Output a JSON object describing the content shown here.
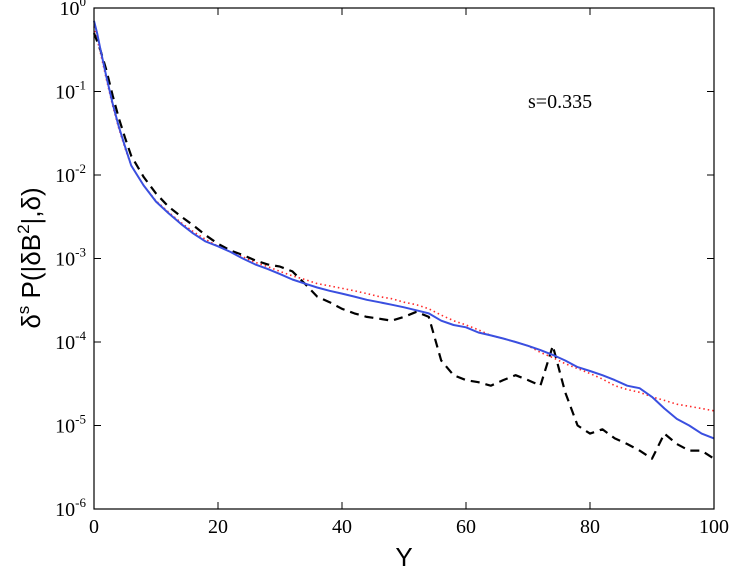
{
  "chart_data": {
    "type": "line",
    "xlabel": "Y",
    "ylabel": {
      "base": "δ",
      "sup": "s",
      "mid": " P(|δB",
      "sup2": "2",
      "end": "|,δ)"
    },
    "annotation": "s=0.335",
    "xlim": [
      0,
      100
    ],
    "ylim": [
      1e-06,
      1
    ],
    "yscale": "log",
    "grid": false,
    "xticks": [
      {
        "value": 0,
        "label": "0"
      },
      {
        "value": 20,
        "label": "20"
      },
      {
        "value": 40,
        "label": "40"
      },
      {
        "value": 60,
        "label": "60"
      },
      {
        "value": 80,
        "label": "80"
      },
      {
        "value": 100,
        "label": "100"
      }
    ],
    "yticks": [
      {
        "value": 1e-06,
        "base": "10",
        "exp": "-6"
      },
      {
        "value": 1e-05,
        "base": "10",
        "exp": "-5"
      },
      {
        "value": 0.0001,
        "base": "10",
        "exp": "-4"
      },
      {
        "value": 0.001,
        "base": "10",
        "exp": "-3"
      },
      {
        "value": 0.01,
        "base": "10",
        "exp": "-2"
      },
      {
        "value": 0.1,
        "base": "10",
        "exp": "-1"
      },
      {
        "value": 1,
        "base": "10",
        "exp": "0"
      }
    ],
    "series": [
      {
        "color": "#3a4fe0",
        "dash": "solid",
        "x": [
          0,
          0.5,
          1,
          2,
          3,
          4,
          5,
          6,
          8,
          10,
          12,
          14,
          16,
          18,
          20,
          22,
          24,
          26,
          28,
          30,
          32,
          34,
          36,
          38,
          40,
          42,
          44,
          46,
          48,
          50,
          52,
          54,
          56,
          58,
          60,
          62,
          64,
          66,
          68,
          70,
          72,
          74,
          76,
          78,
          80,
          82,
          84,
          86,
          88,
          90,
          92,
          94,
          96,
          98,
          100
        ],
        "y": [
          0.7,
          0.5,
          0.33,
          0.15,
          0.072,
          0.038,
          0.022,
          0.013,
          0.0075,
          0.0048,
          0.0035,
          0.0026,
          0.002,
          0.0016,
          0.0014,
          0.0012,
          0.001,
          0.00085,
          0.00075,
          0.00065,
          0.00056,
          0.0005,
          0.00045,
          0.00041,
          0.00038,
          0.00035,
          0.00032,
          0.0003,
          0.00028,
          0.00026,
          0.00024,
          0.00022,
          0.00018,
          0.00016,
          0.00015,
          0.00013,
          0.00012,
          0.00011,
          0.0001,
          9e-05,
          8e-05,
          7e-05,
          6e-05,
          5e-05,
          4.5e-05,
          4e-05,
          3.5e-05,
          3e-05,
          2.8e-05,
          2.2e-05,
          1.6e-05,
          1.2e-05,
          1e-05,
          8e-06,
          7e-06
        ]
      },
      {
        "color": "#ff2a2a",
        "dash": "dotted",
        "x": [
          0,
          1,
          2,
          3,
          4,
          5,
          6,
          8,
          10,
          12,
          14,
          16,
          18,
          20,
          22,
          24,
          26,
          28,
          30,
          32,
          34,
          36,
          38,
          40,
          42,
          44,
          46,
          48,
          50,
          52,
          54,
          56,
          58,
          60,
          62,
          64,
          66,
          68,
          70,
          72,
          74,
          76,
          78,
          80,
          82,
          84,
          86,
          88,
          90,
          92,
          94,
          96,
          98,
          100
        ],
        "y": [
          0.6,
          0.3,
          0.14,
          0.068,
          0.036,
          0.021,
          0.013,
          0.0075,
          0.0049,
          0.0036,
          0.0027,
          0.0021,
          0.0017,
          0.0014,
          0.0012,
          0.00105,
          0.0009,
          0.0008,
          0.0007,
          0.00062,
          0.00056,
          0.0005,
          0.00047,
          0.00044,
          0.00041,
          0.00038,
          0.00035,
          0.00033,
          0.0003,
          0.00028,
          0.00025,
          0.00021,
          0.00018,
          0.00016,
          0.00014,
          0.00012,
          0.00011,
          0.0001,
          9e-05,
          7.5e-05,
          6.5e-05,
          5.5e-05,
          4.8e-05,
          4.2e-05,
          3.6e-05,
          3e-05,
          2.7e-05,
          2.5e-05,
          2.2e-05,
          2e-05,
          1.8e-05,
          1.7e-05,
          1.6e-05,
          1.5e-05
        ]
      },
      {
        "color": "#000000",
        "dash": "dashed",
        "x": [
          0,
          1,
          2,
          3,
          4,
          5,
          6,
          8,
          10,
          12,
          14,
          16,
          18,
          20,
          22,
          24,
          26,
          28,
          30,
          32,
          34,
          36,
          38,
          40,
          42,
          44,
          46,
          48,
          50,
          52,
          54,
          56,
          58,
          60,
          62,
          64,
          66,
          68,
          70,
          72,
          74,
          76,
          78,
          80,
          82,
          84,
          86,
          88,
          90,
          92,
          94,
          96,
          98,
          100
        ],
        "y": [
          0.5,
          0.32,
          0.18,
          0.09,
          0.048,
          0.028,
          0.017,
          0.0095,
          0.006,
          0.0042,
          0.0032,
          0.0025,
          0.0019,
          0.0015,
          0.00125,
          0.0011,
          0.00095,
          0.00085,
          0.0008,
          0.0007,
          0.0005,
          0.00035,
          0.0003,
          0.00025,
          0.00022,
          0.0002,
          0.00019,
          0.00018,
          0.0002,
          0.00023,
          0.0002,
          6e-05,
          4e-05,
          3.5e-05,
          3.3e-05,
          3e-05,
          3.5e-05,
          4e-05,
          3.5e-05,
          3e-05,
          9e-05,
          2.5e-05,
          1e-05,
          8e-06,
          9e-06,
          7e-06,
          6e-06,
          5e-06,
          4e-06,
          8e-06,
          6e-06,
          5e-06,
          5e-06,
          4e-06
        ]
      }
    ]
  }
}
